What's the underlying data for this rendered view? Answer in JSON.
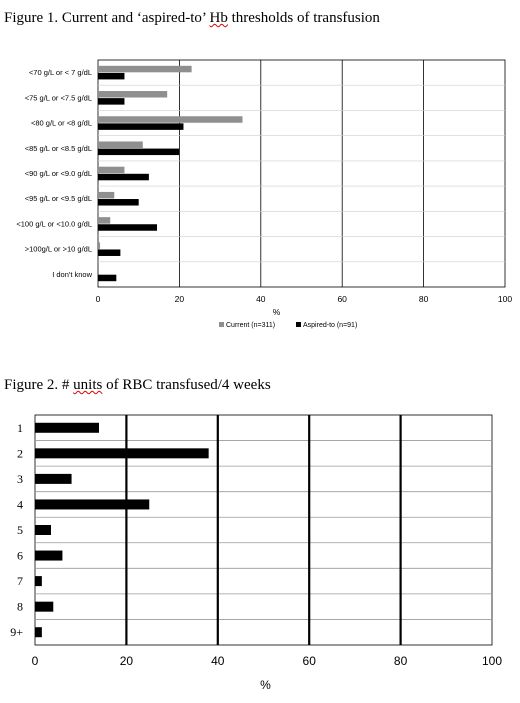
{
  "figure1": {
    "title_prefix": "Figure 1. Current and ‘aspired-to’ ",
    "title_underlined": "Hb",
    "title_suffix": " thresholds of transfusion"
  },
  "figure2": {
    "title_prefix": "Figure 2. # ",
    "title_underlined": "units",
    "title_suffix": " of RBC transfused/4 weeks"
  },
  "colors": {
    "current": "#8f8f8f",
    "aspired": "#000000",
    "grid": "#000000"
  },
  "chart_data": [
    {
      "type": "bar",
      "orientation": "horizontal",
      "title": "Figure 1. Current and ‘aspired-to’ Hb thresholds of transfusion",
      "categories": [
        "<70 g/L or < 7 g/dL",
        "<75 g/L or <7.5 g/dL",
        "<80 g/L or <8 g/dL",
        "<85 g/L or <8.5 g/dL",
        "<90 g/L or <9.0 g/dL",
        "<95 g/L or <9.5 g/dL",
        "<100 g/L or <10.0 g/dL",
        ">100g/L or >10 g/dL",
        "I don't know"
      ],
      "series": [
        {
          "name": "Current (n=311)",
          "values": [
            23,
            17,
            35.5,
            11,
            6.5,
            4,
            3,
            0.5,
            0
          ]
        },
        {
          "name": "Aspired-to (n=91)",
          "values": [
            6.5,
            6.5,
            21,
            20,
            12.5,
            10,
            14.5,
            5.5,
            4.5
          ]
        }
      ],
      "xlabel": "%",
      "xlim": [
        0,
        100
      ],
      "xticks": [
        0,
        20,
        40,
        60,
        80,
        100
      ],
      "grid": true,
      "legend": "bottom"
    },
    {
      "type": "bar",
      "orientation": "horizontal",
      "title": "Figure 2. # units of RBC transfused/4 weeks",
      "categories": [
        "1",
        "2",
        "3",
        "4",
        "5",
        "6",
        "7",
        "8",
        "9+"
      ],
      "values": [
        14,
        38,
        8,
        25,
        3.5,
        6,
        1.5,
        4,
        1.5
      ],
      "xlabel": "%",
      "xlim": [
        0,
        100
      ],
      "xticks": [
        0,
        20,
        40,
        60,
        80,
        100
      ],
      "grid": true,
      "legend": "none"
    }
  ]
}
